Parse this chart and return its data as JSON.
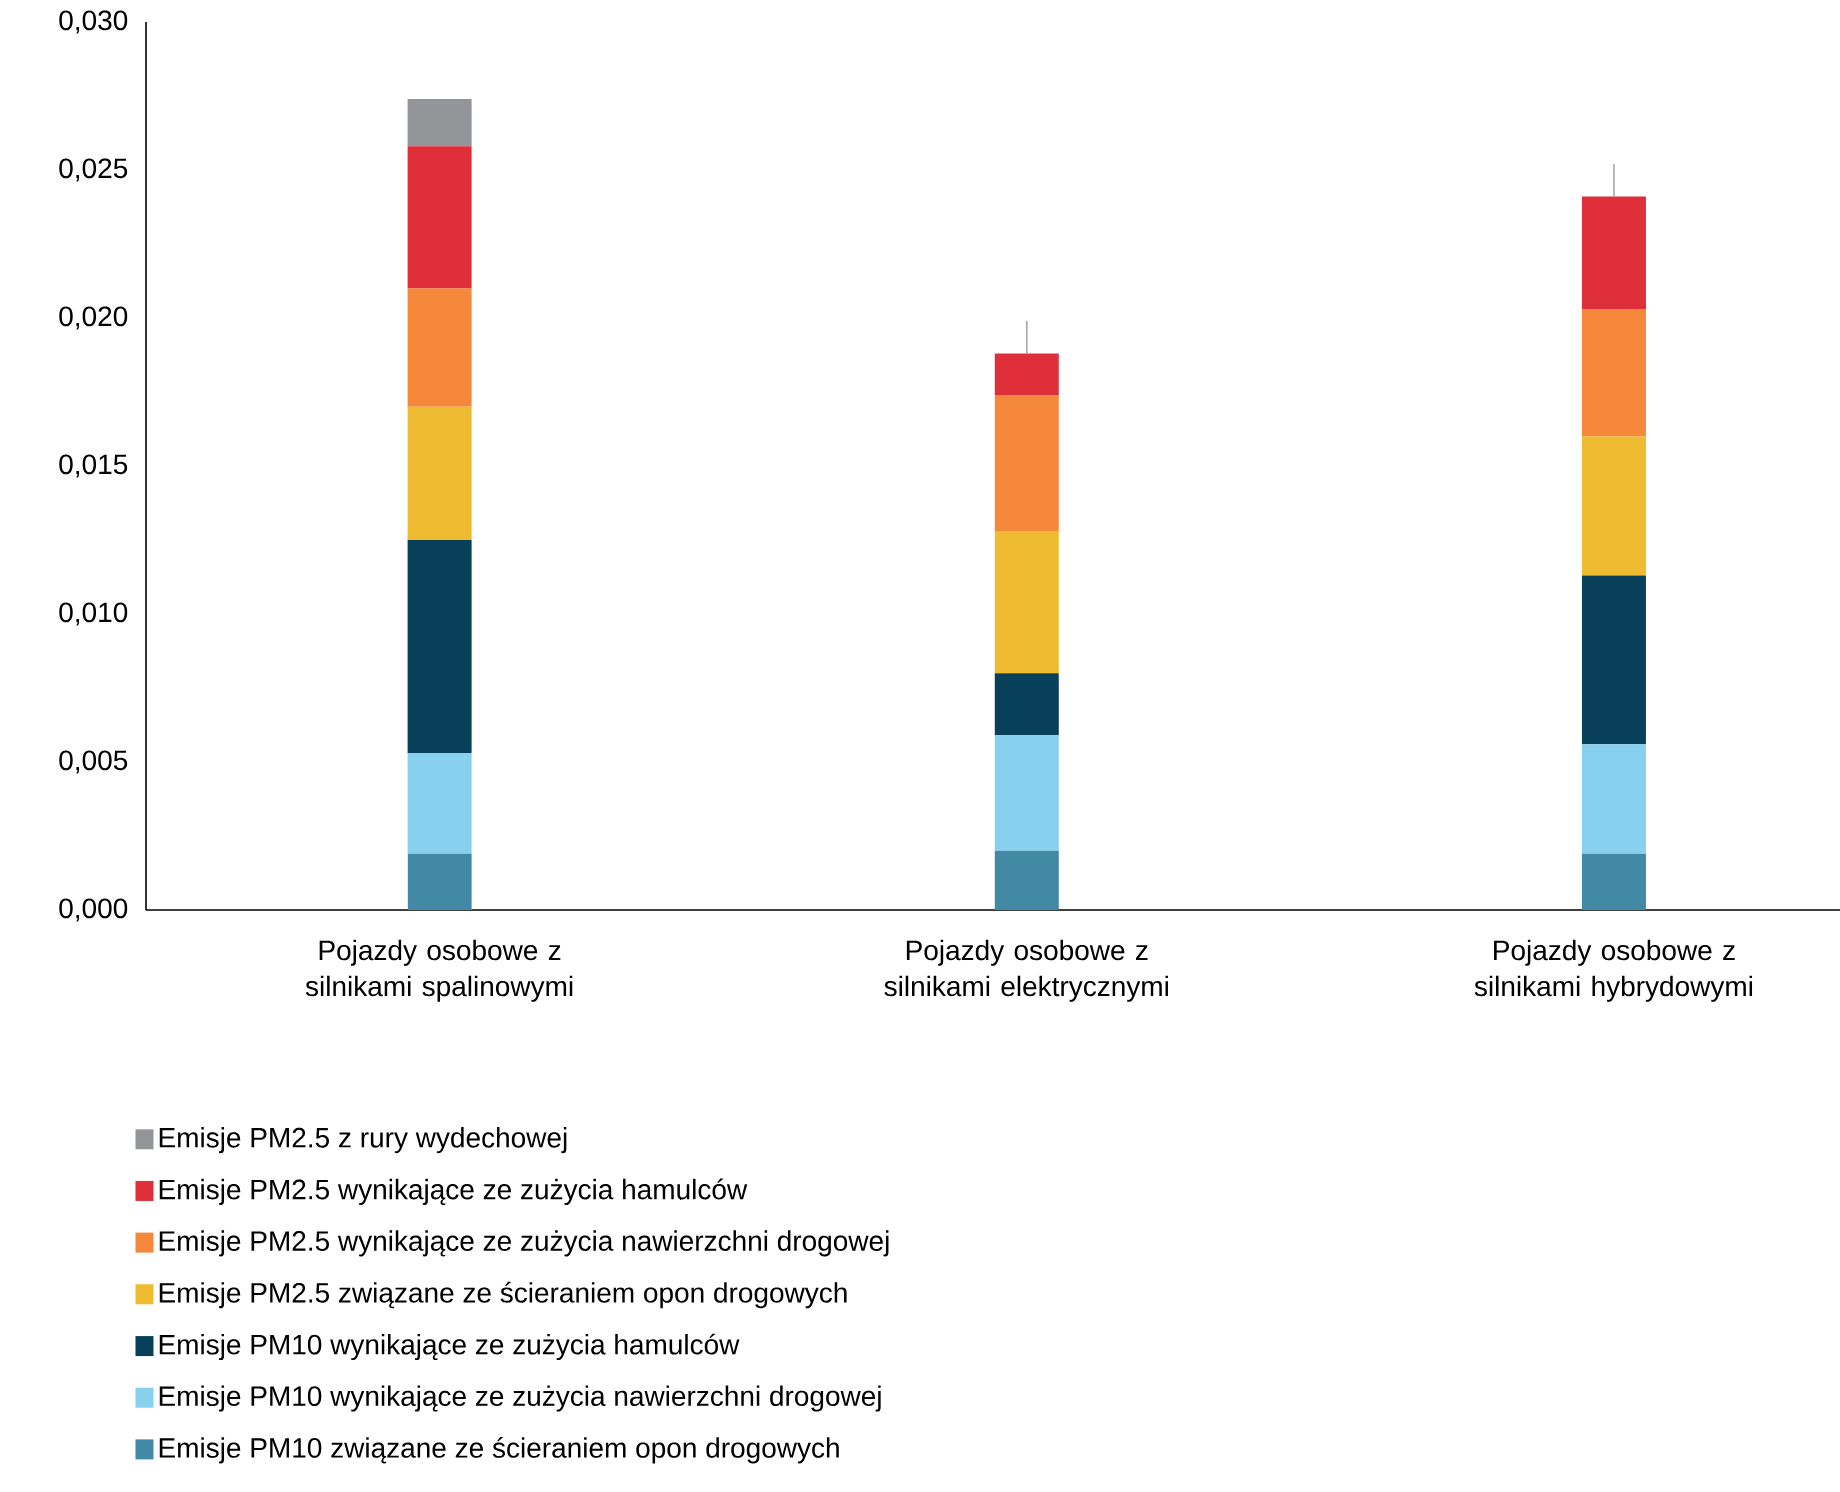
{
  "chart_data": {
    "type": "bar",
    "stacked": true,
    "categories": [
      "Pojazdy osobowe z silnikami spalinowymi",
      "Pojazdy osobowe z silnikami elektrycznymi",
      "Pojazdy osobowe z silnikami hybrydowymi"
    ],
    "series": [
      {
        "name": "Emisje PM10 związane ze ścieraniem opon drogowych",
        "color": "#4289a6",
        "values": [
          0.0019,
          0.002,
          0.0019
        ]
      },
      {
        "name": "Emisje PM10 wynikające ze zużycia nawierzchni drogowej",
        "color": "#87d1ee",
        "values": [
          0.0034,
          0.0039,
          0.0037
        ]
      },
      {
        "name": "Emisje PM10 wynikające ze zużycia hamulców",
        "color": "#08405a",
        "values": [
          0.0072,
          0.0021,
          0.0057
        ]
      },
      {
        "name": "Emisje PM2.5 związane ze ścieraniem opon drogowych",
        "color": "#efbb30",
        "values": [
          0.0045,
          0.0048,
          0.0047
        ]
      },
      {
        "name": "Emisje PM2.5 wynikające ze zużycia nawierzchni drogowej",
        "color": "#f5883b",
        "values": [
          0.004,
          0.0046,
          0.0043
        ]
      },
      {
        "name": "Emisje PM2.5 wynikające ze zużycia hamulców",
        "color": "#df2f3b",
        "values": [
          0.0048,
          0.0014,
          0.0038
        ],
        "errors": [
          null,
          [
            0.0188,
            0.0199
          ],
          [
            0.0241,
            0.0252
          ]
        ]
      },
      {
        "name": "Emisje PM2.5 z rury wydechowej",
        "color": "#949598",
        "values": [
          0.0016,
          0,
          0
        ]
      }
    ],
    "ylim": [
      0,
      0.03
    ],
    "yticks": [
      {
        "value": 0,
        "label": "0,000"
      },
      {
        "value": 0.005,
        "label": "0,005"
      },
      {
        "value": 0.01,
        "label": "0,010"
      },
      {
        "value": 0.015,
        "label": "0,015"
      },
      {
        "value": 0.02,
        "label": "0,020"
      },
      {
        "value": 0.025,
        "label": "0,025"
      },
      {
        "value": 0.03,
        "label": "0,030"
      }
    ],
    "grid": false,
    "legend": "bottom"
  }
}
